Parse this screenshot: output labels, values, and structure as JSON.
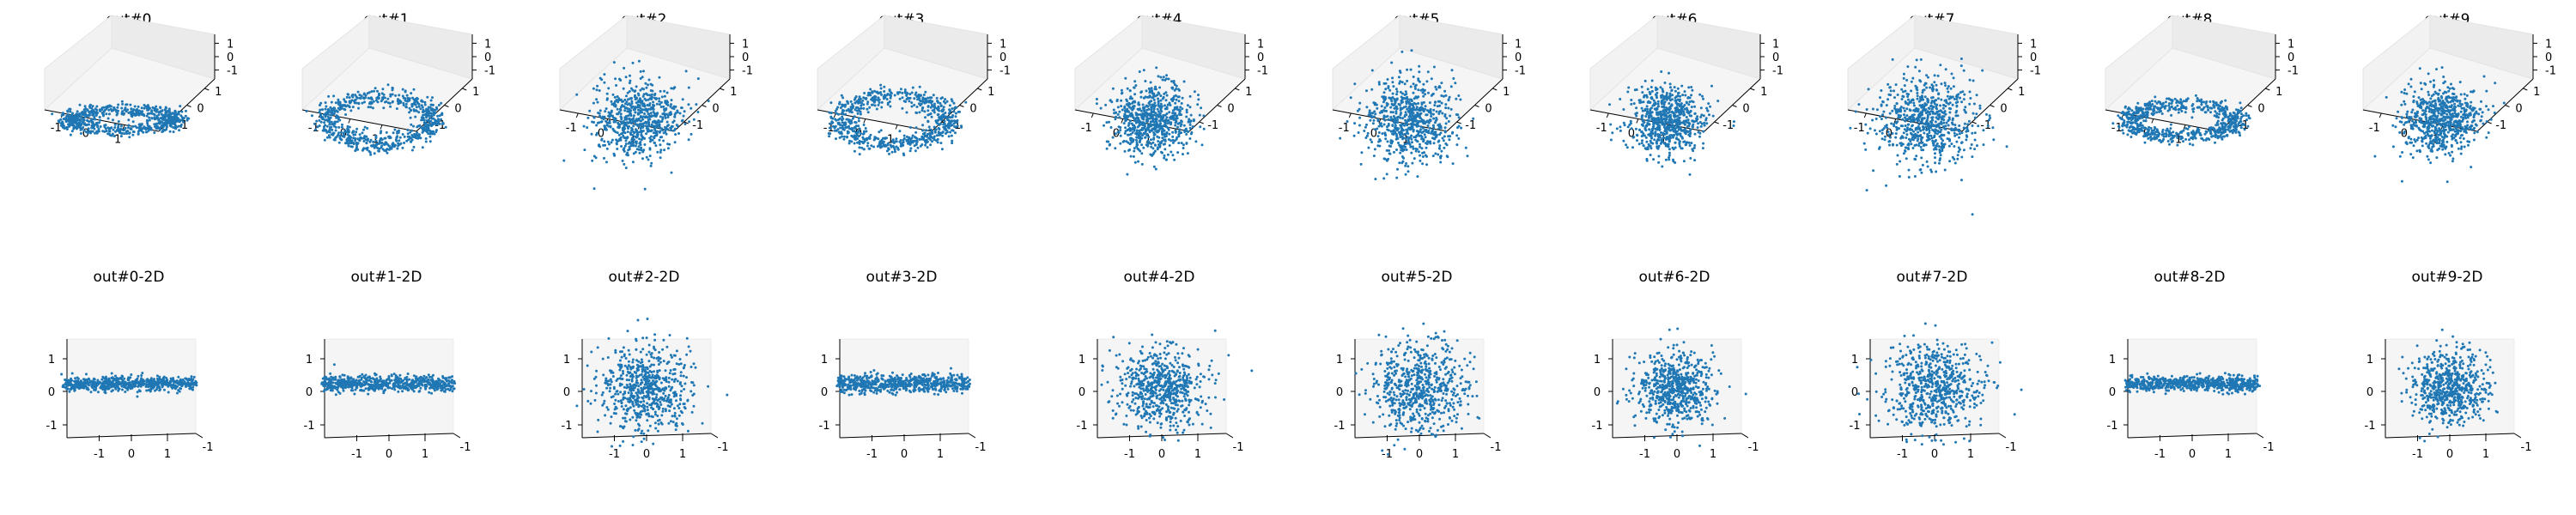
{
  "chart_data": [
    {
      "type": "scatter",
      "title": "out#0",
      "view": "3d",
      "shape": "ring",
      "ring_tilt": 0.18,
      "spread": 0.12,
      "color": "#1f77b4",
      "x_ticks": [
        "-1",
        "0",
        "1"
      ],
      "y_ticks": [
        "-1",
        "0",
        "1"
      ],
      "z_ticks": [
        "-1",
        "0",
        "1"
      ]
    },
    {
      "type": "scatter",
      "title": "out#1",
      "view": "3d",
      "shape": "ring",
      "ring_tilt": 0.42,
      "spread": 0.14,
      "color": "#1f77b4",
      "x_ticks": [
        "-1",
        "0",
        "1"
      ],
      "y_ticks": [
        "-1",
        "0",
        "1"
      ],
      "z_ticks": [
        "-1",
        "0",
        "1"
      ]
    },
    {
      "type": "scatter",
      "title": "out#2",
      "view": "3d",
      "shape": "blob",
      "spread": 0.28,
      "color": "#1f77b4",
      "x_ticks": [
        "-1",
        "0",
        "1"
      ],
      "y_ticks": [
        "-1",
        "0",
        "1"
      ],
      "z_ticks": [
        "-1",
        "0",
        "1"
      ]
    },
    {
      "type": "scatter",
      "title": "out#3",
      "view": "3d",
      "shape": "ring",
      "ring_tilt": 0.45,
      "spread": 0.15,
      "color": "#1f77b4",
      "x_ticks": [
        "-1",
        "0",
        "1"
      ],
      "y_ticks": [
        "-1",
        "0",
        "1"
      ],
      "z_ticks": [
        "-1",
        "0",
        "1"
      ]
    },
    {
      "type": "scatter",
      "title": "out#4",
      "view": "3d",
      "shape": "blob",
      "spread": 0.26,
      "color": "#1f77b4",
      "x_ticks": [
        "-1",
        "0",
        "1"
      ],
      "y_ticks": [
        "-1",
        "0",
        "1"
      ],
      "z_ticks": [
        "-1",
        "0",
        "1"
      ]
    },
    {
      "type": "scatter",
      "title": "out#5",
      "view": "3d",
      "shape": "blob",
      "spread": 0.3,
      "color": "#1f77b4",
      "x_ticks": [
        "-1",
        "0",
        "1"
      ],
      "y_ticks": [
        "-1",
        "0",
        "1"
      ],
      "z_ticks": [
        "-1",
        "0",
        "1"
      ]
    },
    {
      "type": "scatter",
      "title": "out#6",
      "view": "3d",
      "shape": "blob",
      "spread": 0.24,
      "color": "#1f77b4",
      "x_ticks": [
        "-1",
        "0",
        "1"
      ],
      "y_ticks": [
        "-1",
        "0",
        "1"
      ],
      "z_ticks": [
        "-1",
        "0",
        "1"
      ]
    },
    {
      "type": "scatter",
      "title": "out#7",
      "view": "3d",
      "shape": "blob",
      "spread": 0.32,
      "color": "#1f77b4",
      "x_ticks": [
        "-1",
        "0",
        "1"
      ],
      "y_ticks": [
        "-1",
        "0",
        "1"
      ],
      "z_ticks": [
        "-1",
        "0",
        "1"
      ]
    },
    {
      "type": "scatter",
      "title": "out#8",
      "view": "3d",
      "shape": "ring",
      "ring_tilt": 0.3,
      "spread": 0.13,
      "color": "#1f77b4",
      "x_ticks": [
        "-1",
        "0",
        "1"
      ],
      "y_ticks": [
        "-1",
        "0",
        "1"
      ],
      "z_ticks": [
        "-1",
        "0",
        "1"
      ]
    },
    {
      "type": "scatter",
      "title": "out#9",
      "view": "3d",
      "shape": "blob",
      "spread": 0.25,
      "color": "#1f77b4",
      "x_ticks": [
        "-1",
        "0",
        "1"
      ],
      "y_ticks": [
        "-1",
        "0",
        "1"
      ],
      "z_ticks": [
        "-1",
        "0",
        "1"
      ]
    },
    {
      "type": "scatter",
      "title": "out#0-2D",
      "view": "2d",
      "shape": "band",
      "spread": 0.12,
      "color": "#1f77b4",
      "x_ticks": [
        "-1",
        "0",
        "1"
      ],
      "y_ticks": [
        "-1",
        "0",
        "1"
      ],
      "corner_tick": "-1"
    },
    {
      "type": "scatter",
      "title": "out#1-2D",
      "view": "2d",
      "shape": "band",
      "spread": 0.14,
      "color": "#1f77b4",
      "x_ticks": [
        "-1",
        "0",
        "1"
      ],
      "y_ticks": [
        "-1",
        "0",
        "1"
      ],
      "corner_tick": "-1"
    },
    {
      "type": "scatter",
      "title": "out#2-2D",
      "view": "2d",
      "shape": "blob",
      "spread": 0.28,
      "color": "#1f77b4",
      "x_ticks": [
        "-1",
        "0",
        "1"
      ],
      "y_ticks": [
        "-1",
        "0",
        "1"
      ],
      "corner_tick": "-1"
    },
    {
      "type": "scatter",
      "title": "out#3-2D",
      "view": "2d",
      "shape": "band",
      "spread": 0.16,
      "color": "#1f77b4",
      "x_ticks": [
        "-1",
        "0",
        "1"
      ],
      "y_ticks": [
        "-1",
        "0",
        "1"
      ],
      "corner_tick": "-1"
    },
    {
      "type": "scatter",
      "title": "out#4-2D",
      "view": "2d",
      "shape": "blob",
      "spread": 0.26,
      "color": "#1f77b4",
      "x_ticks": [
        "-1",
        "0",
        "1"
      ],
      "y_ticks": [
        "-1",
        "0",
        "1"
      ],
      "corner_tick": "-1"
    },
    {
      "type": "scatter",
      "title": "out#5-2D",
      "view": "2d",
      "shape": "blob",
      "spread": 0.3,
      "color": "#1f77b4",
      "x_ticks": [
        "-1",
        "0",
        "1"
      ],
      "y_ticks": [
        "-1",
        "0",
        "1"
      ],
      "corner_tick": "-1"
    },
    {
      "type": "scatter",
      "title": "out#6-2D",
      "view": "2d",
      "shape": "blob",
      "spread": 0.24,
      "color": "#1f77b4",
      "x_ticks": [
        "-1",
        "0",
        "1"
      ],
      "y_ticks": [
        "-1",
        "0",
        "1"
      ],
      "corner_tick": "-1"
    },
    {
      "type": "scatter",
      "title": "out#7-2D",
      "view": "2d",
      "shape": "blob",
      "spread": 0.3,
      "color": "#1f77b4",
      "x_ticks": [
        "-1",
        "0",
        "1"
      ],
      "y_ticks": [
        "-1",
        "0",
        "1"
      ],
      "corner_tick": "-1"
    },
    {
      "type": "scatter",
      "title": "out#8-2D",
      "view": "2d",
      "shape": "band",
      "spread": 0.13,
      "color": "#1f77b4",
      "x_ticks": [
        "-1",
        "0",
        "1"
      ],
      "y_ticks": [
        "-1",
        "0",
        "1"
      ],
      "corner_tick": "-1"
    },
    {
      "type": "scatter",
      "title": "out#9-2D",
      "view": "2d",
      "shape": "blob",
      "spread": 0.24,
      "color": "#1f77b4",
      "x_ticks": [
        "-1",
        "0",
        "1"
      ],
      "y_ticks": [
        "-1",
        "0",
        "1"
      ],
      "corner_tick": "-1"
    }
  ]
}
